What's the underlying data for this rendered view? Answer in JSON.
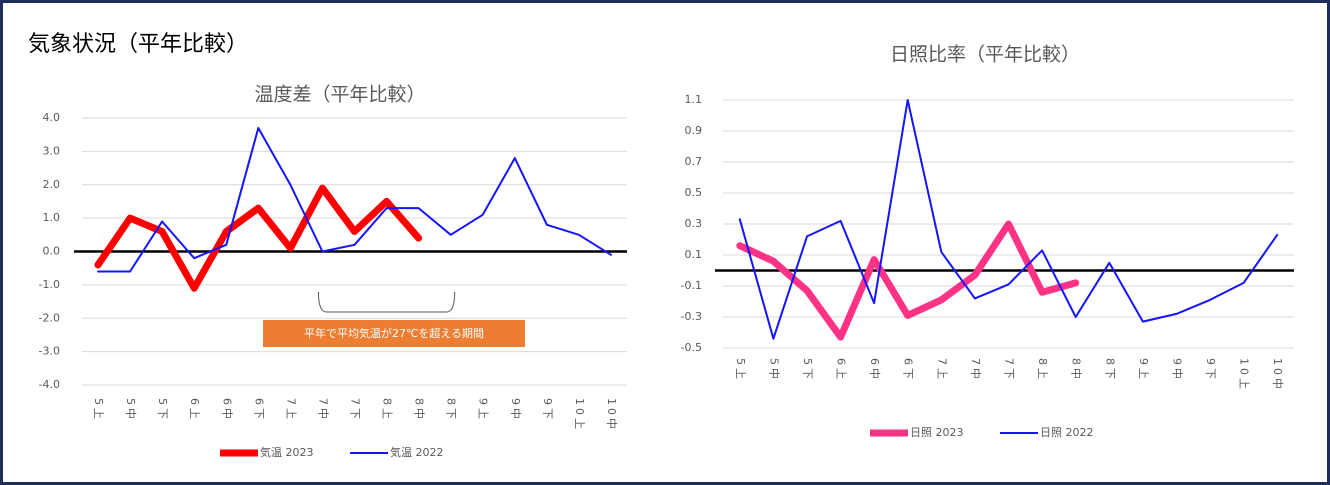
{
  "title": "気象状況（平年比較）",
  "chart_data": [
    {
      "type": "line",
      "title": "温度差（平年比較）",
      "categories": [
        "5上",
        "5中",
        "5下",
        "6上",
        "6中",
        "6下",
        "7上",
        "7中",
        "7下",
        "8上",
        "8中",
        "8下",
        "9上",
        "9中",
        "9下",
        "10上",
        "10中"
      ],
      "series": [
        {
          "name": "気温 2023",
          "color": "#ff0000",
          "values": [
            -0.4,
            1.0,
            0.6,
            -1.1,
            0.6,
            1.3,
            0.1,
            1.9,
            0.6,
            1.5,
            0.4,
            null,
            null,
            null,
            null,
            null,
            null
          ]
        },
        {
          "name": "気温 2022",
          "color": "#1414ff",
          "values": [
            -0.6,
            -0.6,
            0.9,
            -0.2,
            0.2,
            3.7,
            2.0,
            0.0,
            0.2,
            1.3,
            1.3,
            0.5,
            1.1,
            2.8,
            0.8,
            0.5,
            -0.1
          ]
        }
      ],
      "ylim": [
        -4,
        4
      ],
      "yticks": [
        {
          "value": -4,
          "label": "-4.0"
        },
        {
          "value": -3,
          "label": "-3.0"
        },
        {
          "value": -2,
          "label": "-2.0"
        },
        {
          "value": -1,
          "label": "-1.0"
        },
        {
          "value": 0,
          "label": "0.0"
        },
        {
          "value": 1,
          "label": "1.0"
        },
        {
          "value": 2,
          "label": "2.0"
        },
        {
          "value": 3,
          "label": "3.0"
        },
        {
          "value": 4,
          "label": "4.0"
        }
      ],
      "grid": true,
      "legend": "bottom",
      "annotation": "平年で平均気温が27℃を超える期間"
    },
    {
      "type": "line",
      "title": "日照比率（平年比較）",
      "categories": [
        "5上",
        "5中",
        "5下",
        "6上",
        "6中",
        "6下",
        "7上",
        "7中",
        "7下",
        "8上",
        "8中",
        "8下",
        "9上",
        "9中",
        "9下",
        "10上",
        "10中"
      ],
      "series": [
        {
          "name": "日照 2023",
          "color": "#ff3385",
          "values": [
            0.16,
            0.06,
            -0.13,
            -0.43,
            0.07,
            -0.29,
            -0.19,
            -0.03,
            0.3,
            -0.14,
            -0.08,
            null,
            null,
            null,
            null,
            null,
            null
          ]
        },
        {
          "name": "日照 2022",
          "color": "#1414ff",
          "values": [
            0.33,
            -0.44,
            0.22,
            0.32,
            -0.21,
            1.1,
            0.12,
            -0.18,
            -0.09,
            0.13,
            -0.3,
            0.05,
            -0.33,
            -0.28,
            -0.19,
            -0.08,
            0.23
          ]
        }
      ],
      "ylim": [
        -0.5,
        1.1
      ],
      "yticks": [
        -0.5,
        -0.3,
        -0.1,
        0.1,
        0.3,
        0.5,
        0.7,
        0.9,
        1.1
      ],
      "grid": true,
      "legend": "bottom"
    }
  ]
}
